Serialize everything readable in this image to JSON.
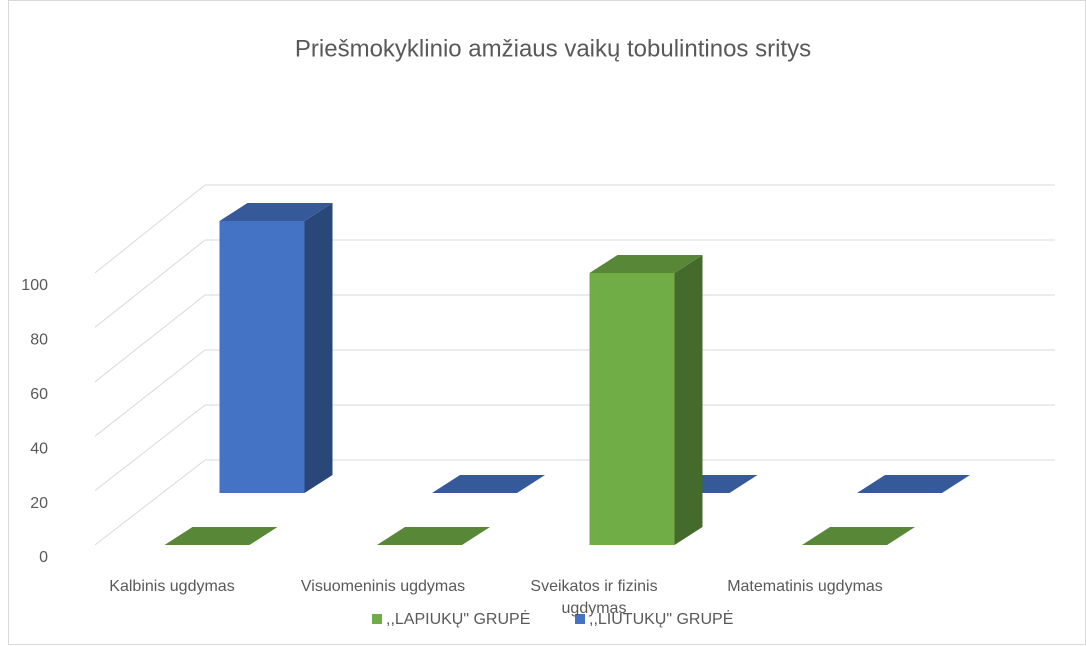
{
  "chart_data": {
    "type": "bar3d",
    "title": "Priešmokyklinio amžiaus vaikų tobulintinos sritys",
    "categories": [
      "Kalbinis ugdymas",
      "Visuomeninis ugdymas",
      "Sveikatos ir fizinis ugdymas",
      "Matematinis ugdymas"
    ],
    "series": [
      {
        "name": ",,LAPIUKŲ\" GRUPĖ",
        "color": "#70ad47",
        "values": [
          0,
          0,
          100,
          0
        ]
      },
      {
        "name": ",,LIUTUKŲ\" GRUPĖ",
        "color": "#4472c4",
        "values": [
          100,
          0,
          0,
          0
        ]
      }
    ],
    "ylim": [
      0,
      100
    ],
    "yticks": [
      0,
      20,
      40,
      60,
      80,
      100
    ],
    "grid": true,
    "legend": "bottom"
  }
}
